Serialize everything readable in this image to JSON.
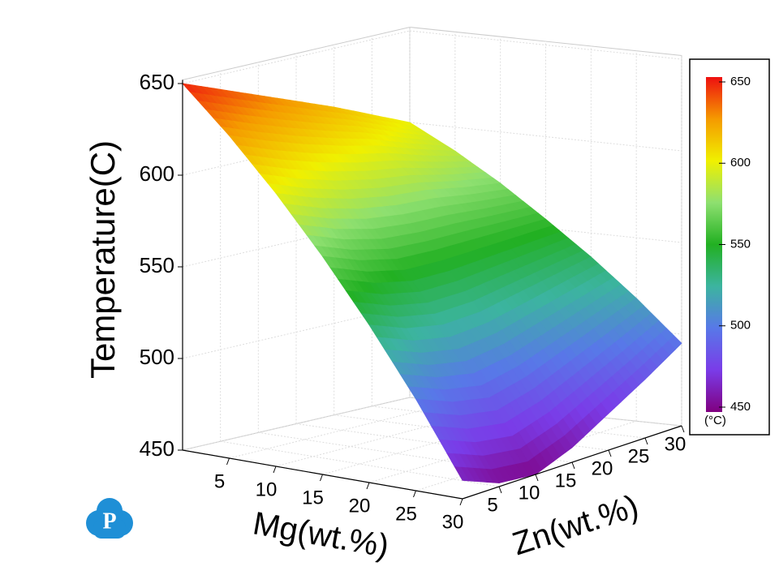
{
  "logo": "P",
  "chart_data": {
    "type": "surface",
    "zlabel": "Temperature(C)",
    "xlabel": "Mg(wt.%)",
    "ylabel": "Zn(wt.%)",
    "x": [
      0,
      5,
      10,
      15,
      20,
      25,
      30
    ],
    "y": [
      0,
      5,
      10,
      15,
      20,
      25,
      30
    ],
    "z": [
      [
        650,
        642,
        634,
        626,
        618,
        609,
        600
      ],
      [
        626,
        618,
        611,
        605,
        600,
        593,
        587
      ],
      [
        599,
        591,
        585,
        581,
        579,
        575,
        572
      ],
      [
        569,
        561,
        556,
        555,
        555,
        555,
        555
      ],
      [
        536,
        528,
        524,
        525,
        529,
        533,
        537
      ],
      [
        500,
        492,
        488,
        493,
        501,
        509,
        517
      ],
      [
        460,
        452,
        450,
        458,
        470,
        482,
        495
      ]
    ],
    "xlim": [
      0,
      30
    ],
    "xticks": [
      5,
      10,
      15,
      20,
      25,
      30
    ],
    "ylim": [
      0,
      30
    ],
    "yticks": [
      5,
      10,
      15,
      20,
      25,
      30
    ],
    "zlim": [
      450,
      652
    ],
    "zticks": [
      450,
      500,
      550,
      600,
      650
    ],
    "grid": true,
    "colorscale": [
      "#800080",
      "#7a3ce8",
      "#5878e8",
      "#3cb4a0",
      "#22b022",
      "#8ee070",
      "#f0f000",
      "#f59a00",
      "#ee1010"
    ],
    "clim": [
      447,
      653
    ],
    "cticks": [
      450,
      500,
      550,
      600,
      650
    ],
    "colorbar_label": "(°C)"
  }
}
